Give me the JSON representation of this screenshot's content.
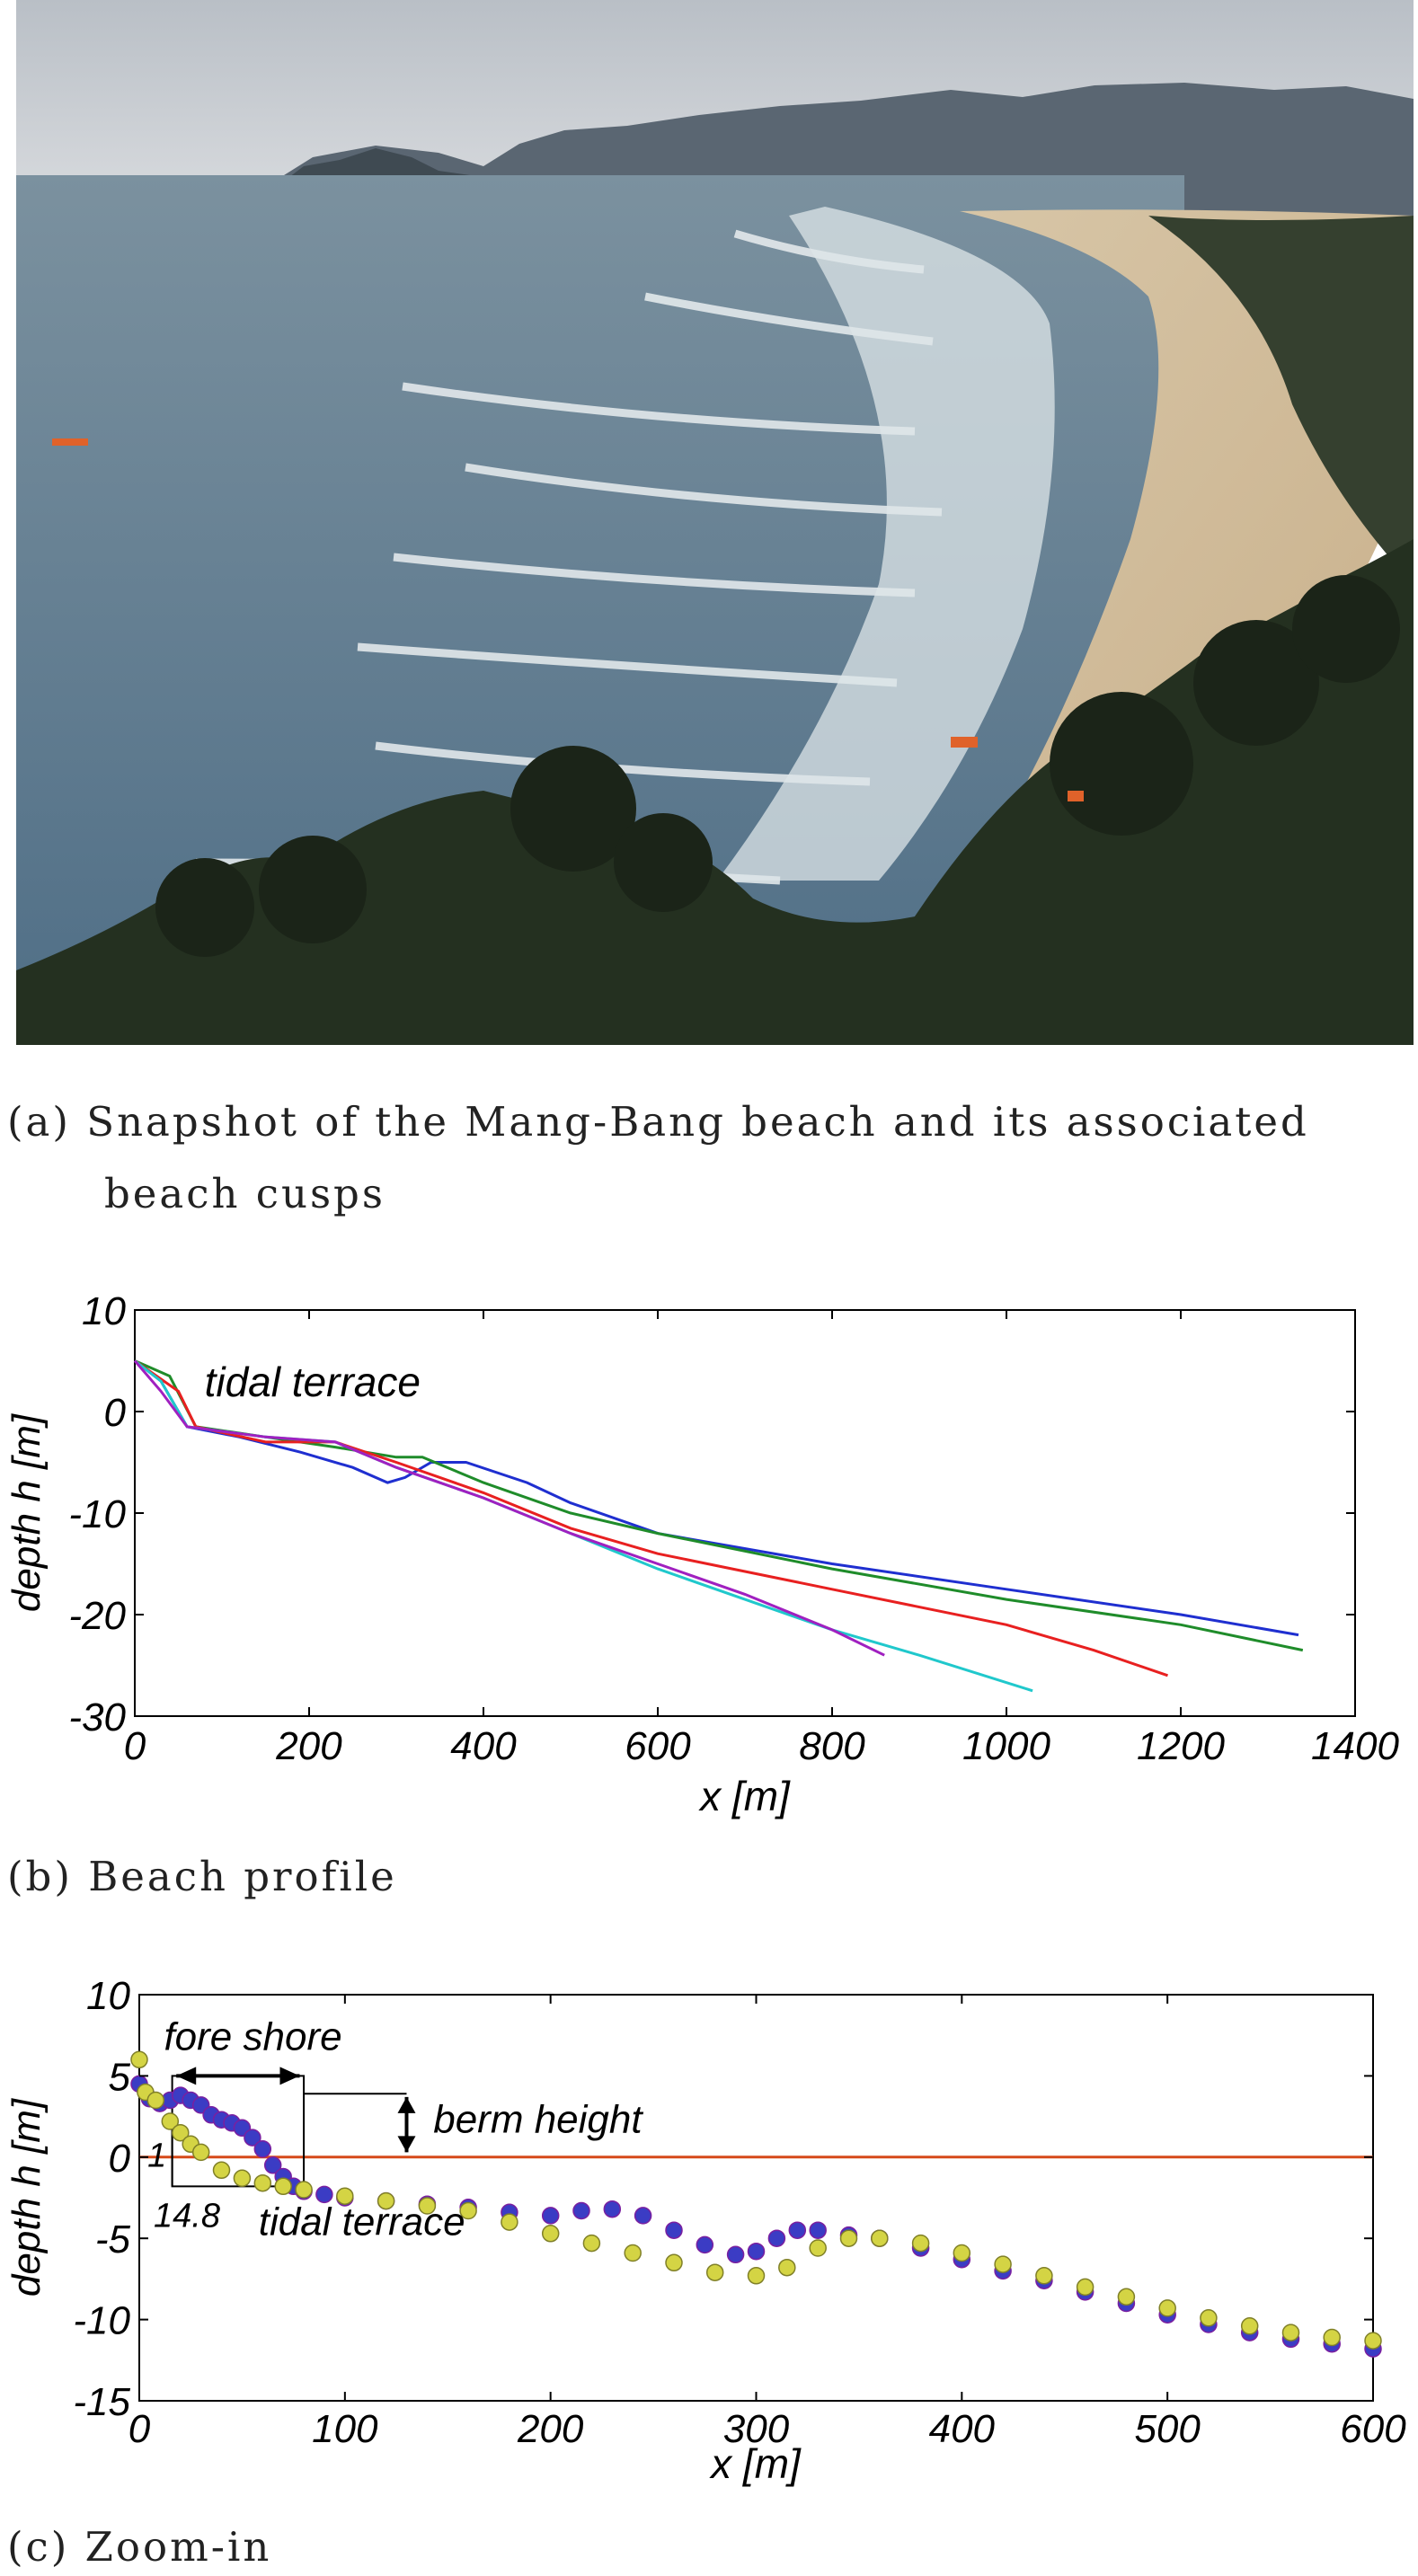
{
  "photo": {
    "colors": {
      "sky": "#c9cdd2",
      "sea": "#5f7d92",
      "surf": "#e9eef0",
      "sand": "#d6c2a2",
      "forest": "#2b3326",
      "mountain": "#4e5a66"
    }
  },
  "captions": {
    "a_line1": "(a) Snapshot of the Mang-Bang beach and its associated",
    "a_line2": "beach cusps",
    "b": "(b) Beach profile",
    "c": "(c) Zoom-in"
  },
  "chart_data": [
    {
      "type": "line",
      "title": "",
      "xlabel": "x [m]",
      "ylabel": "depth  h [m]",
      "xlim": [
        0,
        1400
      ],
      "ylim": [
        -30,
        10
      ],
      "xticks": [
        "0",
        "200",
        "400",
        "600",
        "800",
        "1000",
        "1200",
        "1400"
      ],
      "yticks": [
        "10",
        "0",
        "-10",
        "-20",
        "-30"
      ],
      "annotations": [
        {
          "text": "tidal terrace",
          "x": 80,
          "y": 1.5
        }
      ],
      "series": [
        {
          "color": "#1f2fd0",
          "points": [
            [
              0,
              5
            ],
            [
              30,
              3
            ],
            [
              60,
              -1.5
            ],
            [
              120,
              -2.5
            ],
            [
              190,
              -4
            ],
            [
              250,
              -5.5
            ],
            [
              290,
              -7
            ],
            [
              310,
              -6.5
            ],
            [
              340,
              -5
            ],
            [
              380,
              -5
            ],
            [
              450,
              -7
            ],
            [
              500,
              -9
            ],
            [
              600,
              -12
            ],
            [
              800,
              -15
            ],
            [
              1000,
              -17.5
            ],
            [
              1200,
              -20
            ],
            [
              1335,
              -22
            ]
          ]
        },
        {
          "color": "#1f8c2a",
          "points": [
            [
              0,
              5
            ],
            [
              40,
              3.5
            ],
            [
              70,
              -1.5
            ],
            [
              150,
              -2.5
            ],
            [
              230,
              -3.5
            ],
            [
              300,
              -4.5
            ],
            [
              330,
              -4.5
            ],
            [
              400,
              -7
            ],
            [
              500,
              -10
            ],
            [
              600,
              -12
            ],
            [
              800,
              -15.5
            ],
            [
              1000,
              -18.5
            ],
            [
              1200,
              -21
            ],
            [
              1340,
              -23.5
            ]
          ]
        },
        {
          "color": "#e82020",
          "points": [
            [
              0,
              5
            ],
            [
              50,
              2
            ],
            [
              70,
              -1.5
            ],
            [
              150,
              -3
            ],
            [
              230,
              -3
            ],
            [
              300,
              -5
            ],
            [
              400,
              -8
            ],
            [
              500,
              -11.5
            ],
            [
              600,
              -14
            ],
            [
              800,
              -17.5
            ],
            [
              1000,
              -21
            ],
            [
              1100,
              -23.5
            ],
            [
              1185,
              -26
            ]
          ]
        },
        {
          "color": "#20c8cc",
          "points": [
            [
              0,
              5
            ],
            [
              30,
              3
            ],
            [
              60,
              -1.5
            ],
            [
              150,
              -2.5
            ],
            [
              230,
              -3
            ],
            [
              300,
              -5.5
            ],
            [
              400,
              -8.5
            ],
            [
              500,
              -12
            ],
            [
              600,
              -15.5
            ],
            [
              700,
              -18.5
            ],
            [
              800,
              -21.5
            ],
            [
              900,
              -24
            ],
            [
              1030,
              -27.5
            ]
          ]
        },
        {
          "color": "#a020c0",
          "points": [
            [
              0,
              5
            ],
            [
              30,
              2
            ],
            [
              60,
              -1.5
            ],
            [
              150,
              -2.5
            ],
            [
              230,
              -3
            ],
            [
              300,
              -5.5
            ],
            [
              400,
              -8.5
            ],
            [
              500,
              -12
            ],
            [
              600,
              -15
            ],
            [
              700,
              -18
            ],
            [
              800,
              -21.5
            ],
            [
              860,
              -24
            ]
          ]
        }
      ]
    },
    {
      "type": "scatter",
      "title": "",
      "xlabel": "x [m]",
      "ylabel": "depth  h [m]",
      "xlim": [
        0,
        600
      ],
      "ylim": [
        -15,
        10
      ],
      "xticks": [
        "0",
        "100",
        "200",
        "300",
        "400",
        "500",
        "600"
      ],
      "yticks": [
        "10",
        "5",
        "0",
        "-5",
        "-10",
        "-15"
      ],
      "reference_line": {
        "y": 0,
        "color": "#d64a1a"
      },
      "annotations": {
        "fore_shore": "fore shore",
        "berm_height": "berm height",
        "tidal_terrace": "tidal terrace",
        "slope_rise": "1",
        "slope_run": "14.8"
      },
      "series": [
        {
          "name": "",
          "color": "#3b3cc4",
          "edge": "#7a1fa0",
          "points": [
            [
              0,
              4.5
            ],
            [
              5,
              3.6
            ],
            [
              10,
              3.3
            ],
            [
              15,
              3.5
            ],
            [
              20,
              3.8
            ],
            [
              25,
              3.5
            ],
            [
              30,
              3.2
            ],
            [
              35,
              2.6
            ],
            [
              40,
              2.3
            ],
            [
              45,
              2.1
            ],
            [
              50,
              1.8
            ],
            [
              55,
              1.2
            ],
            [
              60,
              0.5
            ],
            [
              65,
              -0.5
            ],
            [
              70,
              -1.2
            ],
            [
              75,
              -1.8
            ],
            [
              80,
              -2.1
            ],
            [
              90,
              -2.3
            ],
            [
              100,
              -2.5
            ],
            [
              120,
              -2.7
            ],
            [
              140,
              -2.9
            ],
            [
              160,
              -3.1
            ],
            [
              180,
              -3.4
            ],
            [
              200,
              -3.6
            ],
            [
              215,
              -3.3
            ],
            [
              230,
              -3.2
            ],
            [
              245,
              -3.6
            ],
            [
              260,
              -4.5
            ],
            [
              275,
              -5.4
            ],
            [
              290,
              -6
            ],
            [
              300,
              -5.8
            ],
            [
              310,
              -5
            ],
            [
              320,
              -4.5
            ],
            [
              330,
              -4.5
            ],
            [
              345,
              -4.8
            ],
            [
              360,
              -5
            ],
            [
              380,
              -5.6
            ],
            [
              400,
              -6.3
            ],
            [
              420,
              -7
            ],
            [
              440,
              -7.6
            ],
            [
              460,
              -8.3
            ],
            [
              480,
              -9
            ],
            [
              500,
              -9.7
            ],
            [
              520,
              -10.3
            ],
            [
              540,
              -10.8
            ],
            [
              560,
              -11.2
            ],
            [
              580,
              -11.5
            ],
            [
              600,
              -11.8
            ]
          ]
        },
        {
          "name": "",
          "color": "#d4d444",
          "edge": "#808028",
          "points": [
            [
              0,
              6
            ],
            [
              3,
              4
            ],
            [
              8,
              3.5
            ],
            [
              15,
              2.2
            ],
            [
              20,
              1.5
            ],
            [
              25,
              0.8
            ],
            [
              30,
              0.3
            ],
            [
              40,
              -0.8
            ],
            [
              50,
              -1.3
            ],
            [
              60,
              -1.6
            ],
            [
              70,
              -1.8
            ],
            [
              80,
              -2
            ],
            [
              100,
              -2.4
            ],
            [
              120,
              -2.7
            ],
            [
              140,
              -3
            ],
            [
              160,
              -3.3
            ],
            [
              180,
              -4
            ],
            [
              200,
              -4.7
            ],
            [
              220,
              -5.3
            ],
            [
              240,
              -5.9
            ],
            [
              260,
              -6.5
            ],
            [
              280,
              -7.1
            ],
            [
              300,
              -7.3
            ],
            [
              315,
              -6.8
            ],
            [
              330,
              -5.6
            ],
            [
              345,
              -5
            ],
            [
              360,
              -5
            ],
            [
              380,
              -5.3
            ],
            [
              400,
              -5.9
            ],
            [
              420,
              -6.6
            ],
            [
              440,
              -7.3
            ],
            [
              460,
              -8
            ],
            [
              480,
              -8.6
            ],
            [
              500,
              -9.3
            ],
            [
              520,
              -9.9
            ],
            [
              540,
              -10.4
            ],
            [
              560,
              -10.8
            ],
            [
              580,
              -11.1
            ],
            [
              600,
              -11.3
            ]
          ]
        }
      ]
    }
  ]
}
